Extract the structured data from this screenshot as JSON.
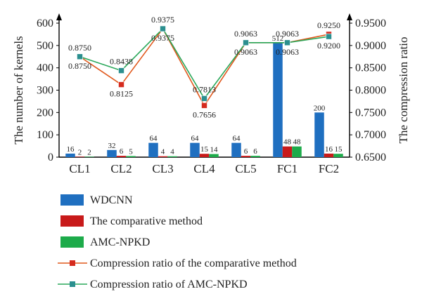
{
  "chart_data": {
    "type": "bar",
    "xlabel": "",
    "ylabel": "The number of kernels",
    "y2label": "The compression ratio",
    "ylim": [
      0,
      600
    ],
    "y2lim": [
      0.65,
      0.95
    ],
    "yticks": [
      "0",
      "100",
      "200",
      "300",
      "400",
      "500",
      "600"
    ],
    "y2ticks": [
      "0.6500",
      "0.7000",
      "0.7500",
      "0.8000",
      "0.8500",
      "0.9000",
      "0.9500"
    ],
    "categories": [
      "CL1",
      "CL2",
      "CL3",
      "CL4",
      "CL5",
      "FC1",
      "FC2"
    ],
    "series": [
      {
        "name": "WDCNN",
        "type": "bar",
        "color": "#1f6fc0",
        "values": [
          16,
          32,
          64,
          64,
          64,
          512,
          200
        ],
        "labels": [
          "16",
          "32",
          "64",
          "64",
          "64",
          "512",
          "200"
        ]
      },
      {
        "name": "The comparative method",
        "type": "bar",
        "color": "#c81a1a",
        "values": [
          2,
          6,
          4,
          15,
          6,
          48,
          16
        ],
        "labels": [
          "2",
          "6",
          "4",
          "15",
          "6",
          "48",
          "16"
        ]
      },
      {
        "name": "AMC-NPKD",
        "type": "bar",
        "color": "#1dab4a",
        "values": [
          2,
          5,
          4,
          14,
          6,
          48,
          15
        ],
        "labels": [
          "2",
          "5",
          "4",
          "14",
          "6",
          "48",
          "15"
        ]
      },
      {
        "name": "Compression ratio of the comparative method",
        "type": "line",
        "axis": "right",
        "color": "#e0581c",
        "marker_color": "#d52b1e",
        "values": [
          0.875,
          0.8125,
          0.9375,
          0.7656,
          0.9063,
          0.9063,
          0.925
        ],
        "labels": [
          "0.8750",
          "0.8125",
          "0.9375",
          "0.7656",
          "0.9063",
          "0.9063",
          "0.9250"
        ]
      },
      {
        "name": "Compression ratio of AMC-NPKD",
        "type": "line",
        "axis": "right",
        "color": "#2aa85a",
        "marker_color": "#2b8f8f",
        "values": [
          0.875,
          0.8438,
          0.9375,
          0.7813,
          0.9063,
          0.9063,
          0.92
        ],
        "labels": [
          "0.8750",
          "0.8438",
          "0.9375",
          "0.7813",
          "0.9063",
          "0.9063",
          "0.9200"
        ]
      }
    ],
    "grid": false,
    "legend_position": "bottom"
  }
}
